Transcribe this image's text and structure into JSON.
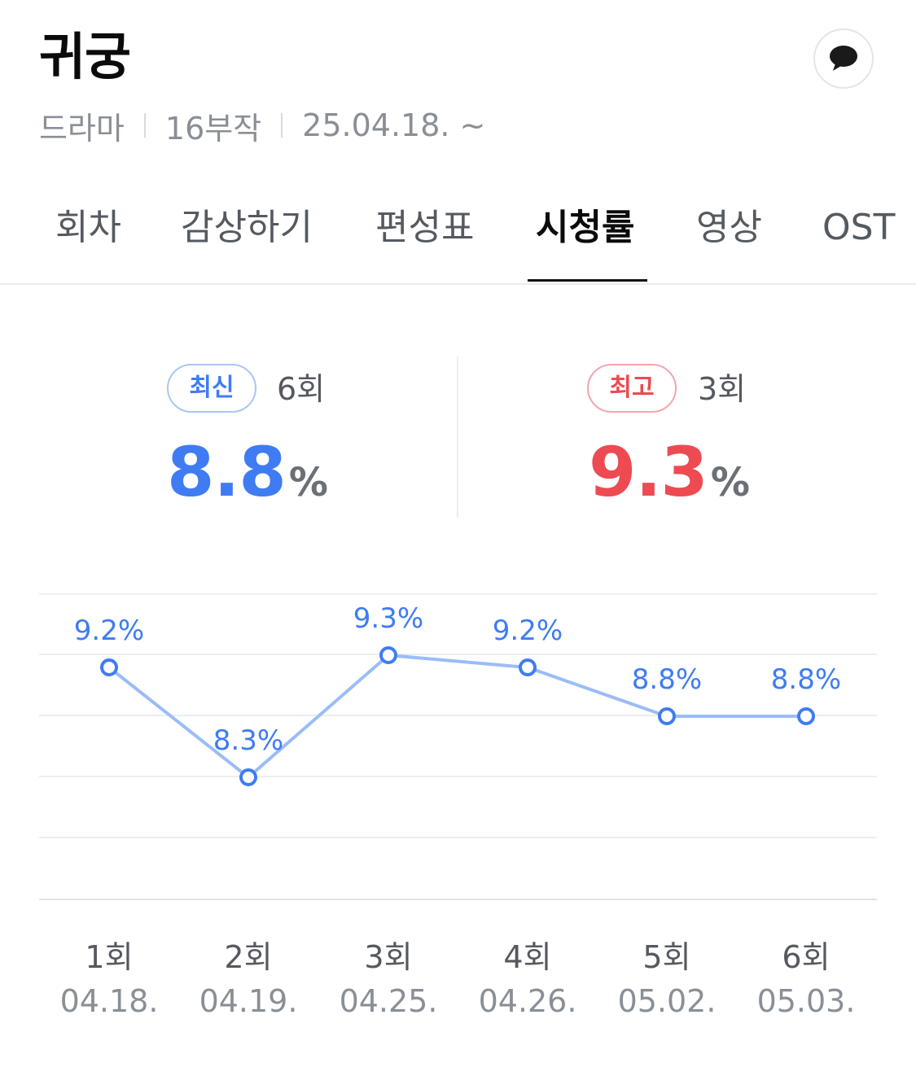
{
  "header": {
    "title": "귀궁",
    "meta": [
      "드라마",
      "16부작",
      "25.04.18. ~"
    ]
  },
  "tabs": [
    {
      "label": "회차",
      "active": false
    },
    {
      "label": "감상하기",
      "active": false
    },
    {
      "label": "편성표",
      "active": false
    },
    {
      "label": "시청률",
      "active": true
    },
    {
      "label": "영상",
      "active": false
    },
    {
      "label": "OST",
      "active": false
    }
  ],
  "summary": {
    "latest": {
      "badge": "최신",
      "episode": "6회",
      "value": "8.8",
      "unit": "%"
    },
    "best": {
      "badge": "최고",
      "episode": "3회",
      "value": "9.3",
      "unit": "%"
    }
  },
  "colors": {
    "accent_blue": "#3f7cf3",
    "line_blue": "#9bbcf7",
    "accent_red": "#ee4a52"
  },
  "chart_data": {
    "type": "line",
    "x": [
      "1회",
      "2회",
      "3회",
      "4회",
      "5회",
      "6회"
    ],
    "dates": [
      "04.18.",
      "04.19.",
      "04.25.",
      "04.26.",
      "05.02.",
      "05.03."
    ],
    "values": [
      9.2,
      8.3,
      9.3,
      9.2,
      8.8,
      8.8
    ],
    "value_labels": [
      "9.2%",
      "8.3%",
      "9.3%",
      "9.2%",
      "8.8%",
      "8.8%"
    ],
    "ylim": [
      7.3,
      9.8
    ],
    "grid": true
  }
}
